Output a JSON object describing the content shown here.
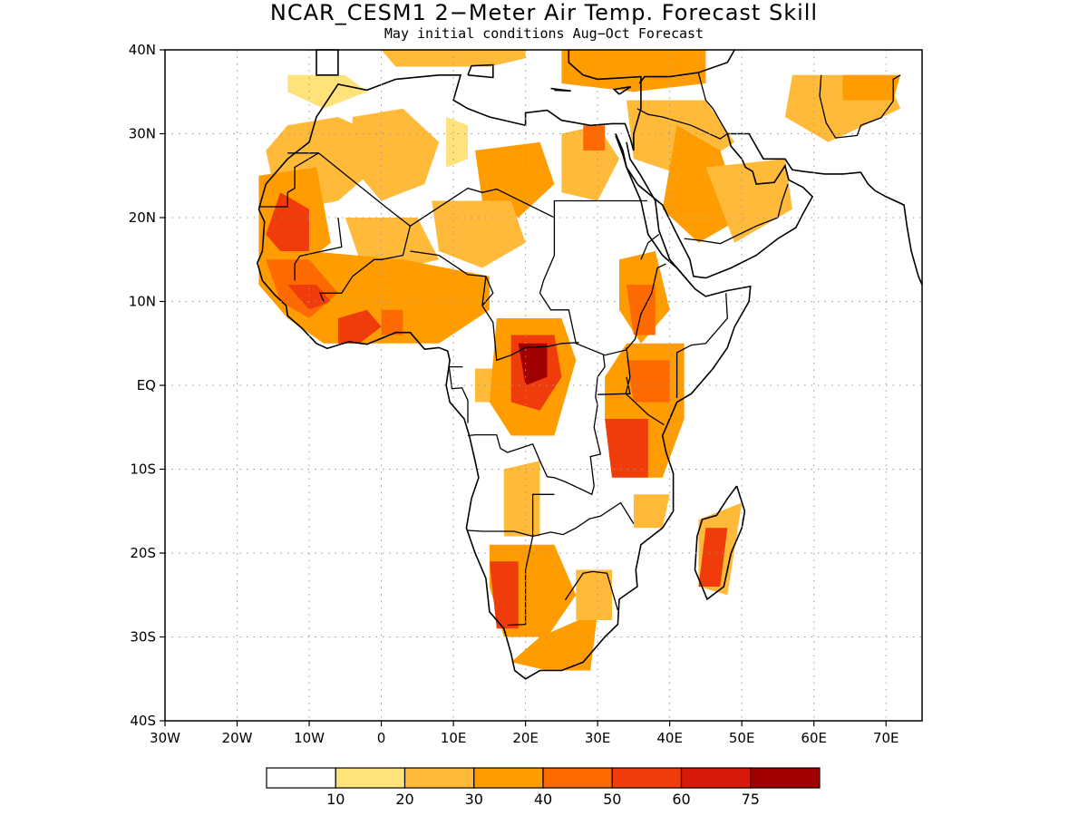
{
  "title": "NCAR_CESM1 2−Meter Air Temp. Forecast Skill",
  "subtitle": "May initial conditions   Aug−Oct Forecast",
  "map": {
    "lon_range": [
      -30,
      75
    ],
    "lat_range": [
      -40,
      40
    ],
    "grid": "dotted",
    "x_ticks": [
      "30W",
      "20W",
      "10W",
      "0",
      "10E",
      "20E",
      "30E",
      "40E",
      "50E",
      "60E",
      "70E"
    ],
    "x_tick_lons": [
      -30,
      -20,
      -10,
      0,
      10,
      20,
      30,
      40,
      50,
      60,
      70
    ],
    "y_ticks": [
      "40N",
      "30N",
      "20N",
      "10N",
      "EQ",
      "10S",
      "20S",
      "30S",
      "40S"
    ],
    "y_tick_lats": [
      40,
      30,
      20,
      10,
      0,
      -10,
      -20,
      -30,
      -40
    ]
  },
  "colorbar": {
    "colors": [
      "#ffffff",
      "#ffe27a",
      "#ffba3a",
      "#ff9c00",
      "#ff6a00",
      "#f03c0a",
      "#d81a0a",
      "#a00000"
    ],
    "labels": [
      "10",
      "20",
      "30",
      "40",
      "50",
      "60",
      "75"
    ]
  }
}
